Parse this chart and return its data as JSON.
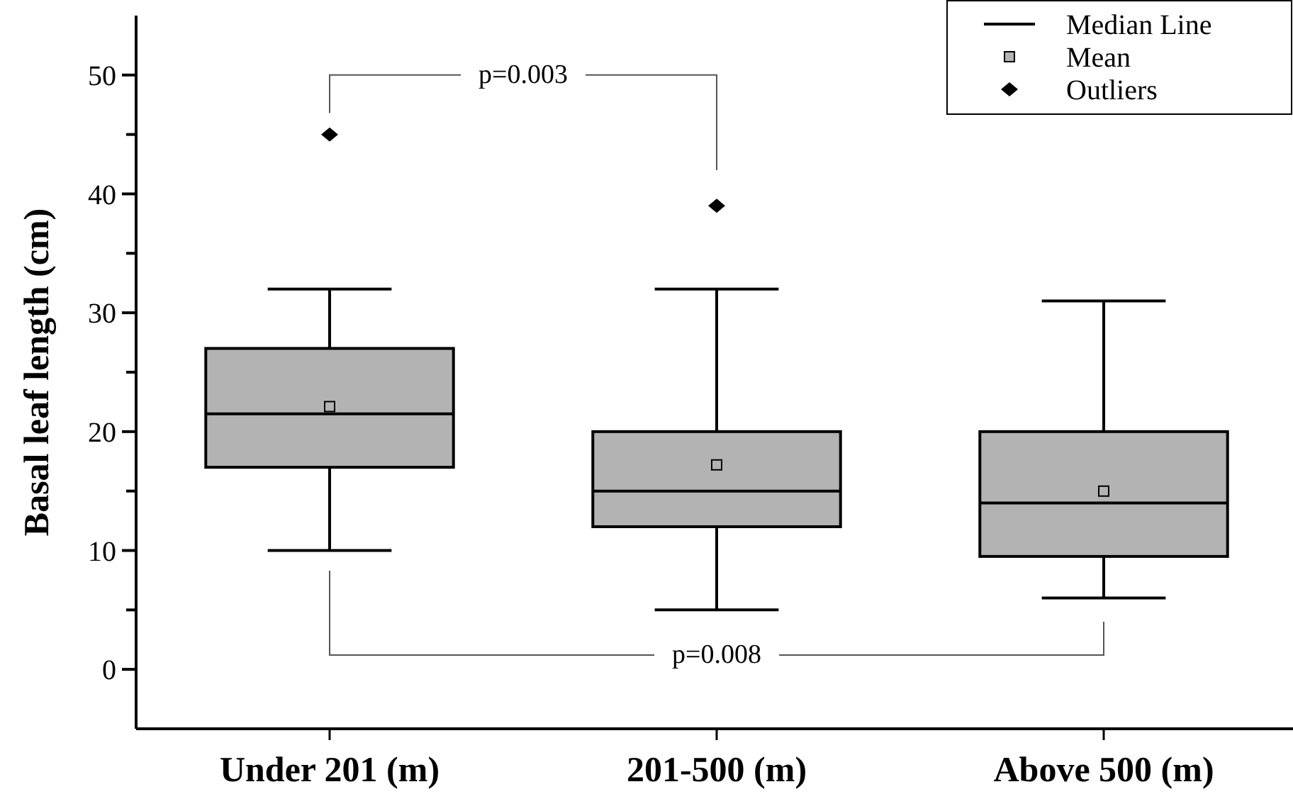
{
  "chart_data": {
    "type": "box",
    "ylabel": "Basal leaf length (cm)",
    "categories": [
      "Under 201 (m)",
      "201-500 (m)",
      "Above 500 (m)"
    ],
    "ylim": [
      -5,
      55
    ],
    "yticks": [
      0,
      {
        "value": 5,
        "label": null
      },
      10,
      {
        "value": 15,
        "label": null
      },
      20,
      {
        "value": 25,
        "label": null
      },
      30,
      {
        "value": 35,
        "label": null
      },
      40,
      {
        "value": 45,
        "label": null
      },
      50
    ],
    "series": [
      {
        "name": "Median Line",
        "type": "box",
        "color": "#b3b3b3",
        "boxes": [
          {
            "low": 10,
            "q1": 17,
            "median": 21.5,
            "q3": 27,
            "high": 32
          },
          {
            "low": 5,
            "q1": 12,
            "median": 15,
            "q3": 20,
            "high": 32
          },
          {
            "low": 6,
            "q1": 9.5,
            "median": 14,
            "q3": 20,
            "high": 31
          }
        ]
      },
      {
        "name": "Mean",
        "type": "scatter",
        "marker": "square",
        "color": "#b3b3b3",
        "x": [
          "Under 201 (m)",
          "201-500 (m)",
          "Above 500 (m)"
        ],
        "values": [
          22.1,
          17.2,
          15
        ]
      },
      {
        "name": "Outliers",
        "type": "scatter",
        "marker": "diamond",
        "color": "#000000",
        "x": [
          "Under 201 (m)",
          "201-500 (m)"
        ],
        "values": [
          45,
          39
        ]
      }
    ],
    "annotations": [
      "p=0.003",
      "p=0.008"
    ],
    "legend": "top right",
    "grid": false
  }
}
